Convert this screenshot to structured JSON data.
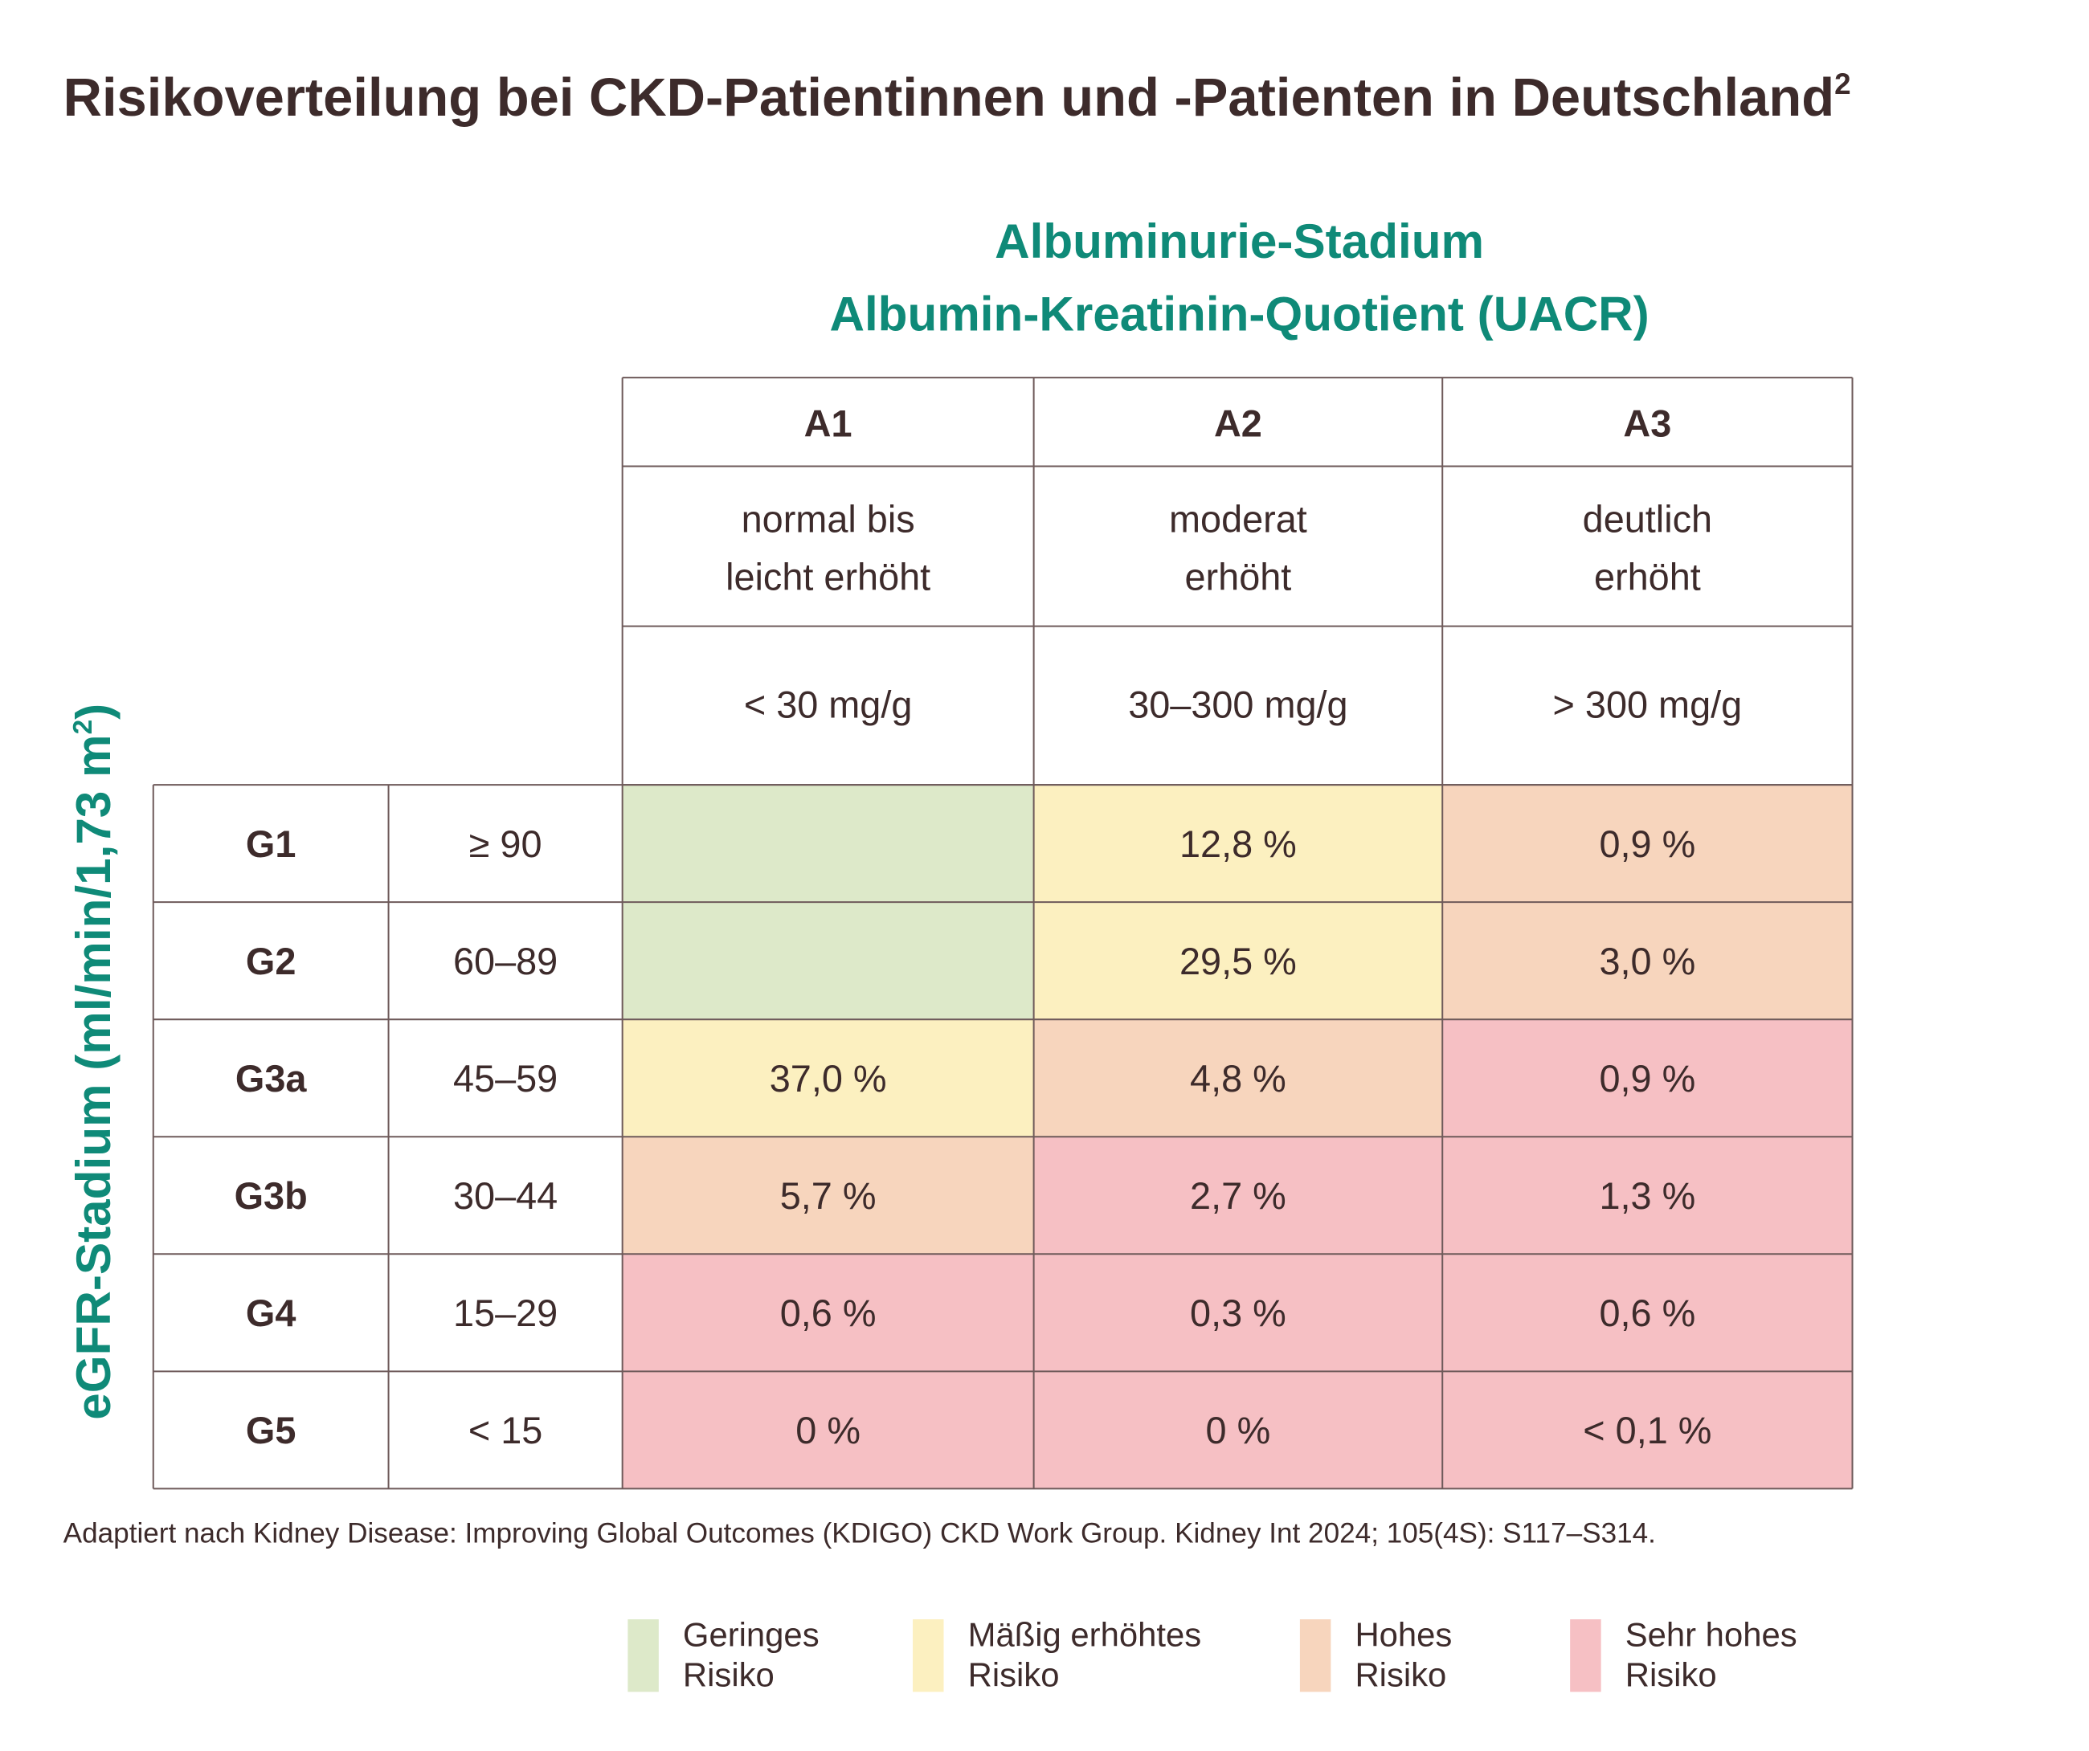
{
  "title": {
    "text": "Risikoverteilung bei CKD-Patientinnen und -Patienten in Deutschland",
    "sup": "2"
  },
  "column_axis": [
    "Albuminurie-Stadium",
    "Albumin-Kreatinin-Quotient (UACR)"
  ],
  "row_axis": {
    "text": "eGFR-Stadium (ml/min/1,73 m",
    "sup": "2",
    "end": ")"
  },
  "columns": [
    {
      "id": "A1",
      "description": [
        "normal bis",
        "leicht erhöht"
      ],
      "range": "< 30 mg/g"
    },
    {
      "id": "A2",
      "description": [
        "moderat",
        "erhöht"
      ],
      "range": "30–300 mg/g"
    },
    {
      "id": "A3",
      "description": [
        "deutlich",
        "erhöht"
      ],
      "range": "> 300 mg/g"
    }
  ],
  "rows": [
    {
      "id": "G1",
      "range": "≥ 90",
      "cells": [
        {
          "risk": 0
        },
        {
          "value": "12,8 %",
          "risk": 1
        },
        {
          "value": "0,9 %",
          "risk": 2
        }
      ]
    },
    {
      "id": "G2",
      "range": "60–89",
      "cells": [
        {
          "risk": 0
        },
        {
          "value": "29,5 %",
          "risk": 1
        },
        {
          "value": "3,0 %",
          "risk": 2
        }
      ]
    },
    {
      "id": "G3a",
      "range": "45–59",
      "cells": [
        {
          "value": "37,0 %",
          "risk": 1
        },
        {
          "value": "4,8 %",
          "risk": 2
        },
        {
          "value": "0,9 %",
          "risk": 3
        }
      ]
    },
    {
      "id": "G3b",
      "range": "30–44",
      "cells": [
        {
          "value": "5,7 %",
          "risk": 2
        },
        {
          "value": "2,7 %",
          "risk": 3
        },
        {
          "value": "1,3 %",
          "risk": 3
        }
      ]
    },
    {
      "id": "G4",
      "range": "15–29",
      "cells": [
        {
          "value": "0,6 %",
          "risk": 3
        },
        {
          "value": "0,3 %",
          "risk": 3
        },
        {
          "value": "0,6 %",
          "risk": 3
        }
      ]
    },
    {
      "id": "G5",
      "range": "< 15",
      "cells": [
        {
          "value": "0 %",
          "risk": 3
        },
        {
          "value": "0 %",
          "risk": 3
        },
        {
          "value": "< 0,1 %",
          "risk": 3
        }
      ]
    }
  ],
  "footnote": "Adaptiert nach Kidney Disease: Improving Global Outcomes (KDIGO) CKD Work Group. Kidney Int 2024; 105(4S): S117–S314.",
  "legend": [
    {
      "label": [
        "Geringes",
        "Risiko"
      ],
      "color": "#dde9c9"
    },
    {
      "label": [
        "Mäßig erhöhtes",
        "Risiko"
      ],
      "color": "#fcf0c0"
    },
    {
      "label": [
        "Hohes",
        "Risiko"
      ],
      "color": "#f7d5bd"
    },
    {
      "label": [
        "Sehr hohes",
        "Risiko"
      ],
      "color": "#f6c0c4"
    }
  ]
}
